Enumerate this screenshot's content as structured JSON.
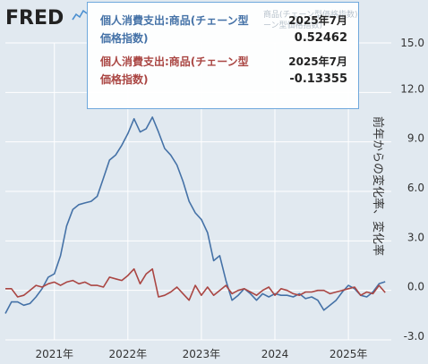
{
  "logo": {
    "text": "FRED"
  },
  "tooltip": {
    "series": [
      {
        "name": "個人消費支出:商品(チェーン型価格指数)",
        "date": "2025年7月",
        "value": "0.52462",
        "color": "#4572a7"
      },
      {
        "name": "個人消費支出:商品(チェーン型価格指数)",
        "date": "2025年7月",
        "value": "-0.13355",
        "color": "#aa4643"
      }
    ],
    "ghost": [
      "商品(チェーン型価格指数)",
      "ーン型価格指数)"
    ]
  },
  "chart_data": {
    "type": "line",
    "ylabel": "前年からの変化率、変化率",
    "ylim": [
      -3.0,
      15.0
    ],
    "yticks": [
      "15.0",
      "12.0",
      "9.0",
      "6.0",
      "3.0",
      "0.0",
      "-3.0"
    ],
    "xlim": [
      "2020-05",
      "2025-08"
    ],
    "xticks": [
      {
        "label": "2021年",
        "date": "2021-01"
      },
      {
        "label": "2022年",
        "date": "2022-01"
      },
      {
        "label": "2023年",
        "date": "2023-01"
      },
      {
        "label": "2024",
        "date": "2024-01"
      },
      {
        "label": "2025年",
        "date": "2025-01"
      }
    ],
    "grid": true,
    "series": [
      {
        "name": "個人消費支出:商品(チェーン型価格指数)",
        "color": "#4572a7",
        "points": [
          [
            "2020-05",
            -1.4
          ],
          [
            "2020-06",
            -0.7
          ],
          [
            "2020-07",
            -0.7
          ],
          [
            "2020-08",
            -0.9
          ],
          [
            "2020-09",
            -0.8
          ],
          [
            "2020-10",
            -0.4
          ],
          [
            "2020-11",
            0.1
          ],
          [
            "2020-12",
            0.8
          ],
          [
            "2021-01",
            1.0
          ],
          [
            "2021-02",
            2.1
          ],
          [
            "2021-03",
            3.9
          ],
          [
            "2021-04",
            4.9
          ],
          [
            "2021-05",
            5.2
          ],
          [
            "2021-06",
            5.3
          ],
          [
            "2021-07",
            5.4
          ],
          [
            "2021-08",
            5.7
          ],
          [
            "2021-09",
            6.8
          ],
          [
            "2021-10",
            7.9
          ],
          [
            "2021-11",
            8.2
          ],
          [
            "2021-12",
            8.8
          ],
          [
            "2022-01",
            9.5
          ],
          [
            "2022-02",
            10.4
          ],
          [
            "2022-03",
            9.6
          ],
          [
            "2022-04",
            9.8
          ],
          [
            "2022-05",
            10.5
          ],
          [
            "2022-06",
            9.6
          ],
          [
            "2022-07",
            8.6
          ],
          [
            "2022-08",
            8.2
          ],
          [
            "2022-09",
            7.6
          ],
          [
            "2022-10",
            6.6
          ],
          [
            "2022-11",
            5.4
          ],
          [
            "2022-12",
            4.7
          ],
          [
            "2023-01",
            4.3
          ],
          [
            "2023-02",
            3.5
          ],
          [
            "2023-03",
            1.8
          ],
          [
            "2023-04",
            2.1
          ],
          [
            "2023-05",
            0.6
          ],
          [
            "2023-06",
            -0.6
          ],
          [
            "2023-07",
            -0.3
          ],
          [
            "2023-08",
            0.1
          ],
          [
            "2023-09",
            -0.2
          ],
          [
            "2023-10",
            -0.6
          ],
          [
            "2023-11",
            -0.2
          ],
          [
            "2023-12",
            -0.4
          ],
          [
            "2024-01",
            -0.2
          ],
          [
            "2024-02",
            -0.3
          ],
          [
            "2024-03",
            -0.3
          ],
          [
            "2024-04",
            -0.4
          ],
          [
            "2024-05",
            -0.2
          ],
          [
            "2024-06",
            -0.5
          ],
          [
            "2024-07",
            -0.4
          ],
          [
            "2024-08",
            -0.6
          ],
          [
            "2024-09",
            -1.2
          ],
          [
            "2024-10",
            -0.9
          ],
          [
            "2024-11",
            -0.6
          ],
          [
            "2024-12",
            -0.1
          ],
          [
            "2025-01",
            0.3
          ],
          [
            "2025-02",
            0.1
          ],
          [
            "2025-03",
            -0.3
          ],
          [
            "2025-04",
            -0.4
          ],
          [
            "2025-05",
            -0.1
          ],
          [
            "2025-06",
            0.4
          ],
          [
            "2025-07",
            0.52462
          ]
        ]
      },
      {
        "name": "個人消費支出:商品(チェーン型価格指数)",
        "color": "#aa4643",
        "points": [
          [
            "2020-05",
            0.1
          ],
          [
            "2020-06",
            0.1
          ],
          [
            "2020-07",
            -0.4
          ],
          [
            "2020-08",
            -0.3
          ],
          [
            "2020-09",
            0.0
          ],
          [
            "2020-10",
            0.3
          ],
          [
            "2020-11",
            0.2
          ],
          [
            "2020-12",
            0.4
          ],
          [
            "2021-01",
            0.5
          ],
          [
            "2021-02",
            0.3
          ],
          [
            "2021-03",
            0.5
          ],
          [
            "2021-04",
            0.6
          ],
          [
            "2021-05",
            0.4
          ],
          [
            "2021-06",
            0.5
          ],
          [
            "2021-07",
            0.3
          ],
          [
            "2021-08",
            0.3
          ],
          [
            "2021-09",
            0.2
          ],
          [
            "2021-10",
            0.8
          ],
          [
            "2021-11",
            0.7
          ],
          [
            "2021-12",
            0.6
          ],
          [
            "2022-01",
            0.9
          ],
          [
            "2022-02",
            1.3
          ],
          [
            "2022-03",
            0.4
          ],
          [
            "2022-04",
            1.0
          ],
          [
            "2022-05",
            1.3
          ],
          [
            "2022-06",
            -0.4
          ],
          [
            "2022-07",
            -0.3
          ],
          [
            "2022-08",
            -0.1
          ],
          [
            "2022-09",
            0.2
          ],
          [
            "2022-10",
            -0.2
          ],
          [
            "2022-11",
            -0.6
          ],
          [
            "2022-12",
            0.3
          ],
          [
            "2023-01",
            -0.3
          ],
          [
            "2023-02",
            0.2
          ],
          [
            "2023-03",
            -0.3
          ],
          [
            "2023-04",
            0.0
          ],
          [
            "2023-05",
            0.3
          ],
          [
            "2023-06",
            -0.2
          ],
          [
            "2023-07",
            0.0
          ],
          [
            "2023-08",
            0.1
          ],
          [
            "2023-09",
            -0.1
          ],
          [
            "2023-10",
            -0.3
          ],
          [
            "2023-11",
            0.0
          ],
          [
            "2023-12",
            0.2
          ],
          [
            "2024-01",
            -0.3
          ],
          [
            "2024-02",
            0.1
          ],
          [
            "2024-03",
            0.0
          ],
          [
            "2024-04",
            -0.2
          ],
          [
            "2024-05",
            -0.3
          ],
          [
            "2024-06",
            -0.1
          ],
          [
            "2024-07",
            -0.1
          ],
          [
            "2024-08",
            0.0
          ],
          [
            "2024-09",
            0.0
          ],
          [
            "2024-10",
            -0.2
          ],
          [
            "2024-11",
            -0.1
          ],
          [
            "2024-12",
            0.0
          ],
          [
            "2025-01",
            0.1
          ],
          [
            "2025-02",
            0.2
          ],
          [
            "2025-03",
            -0.3
          ],
          [
            "2025-04",
            -0.1
          ],
          [
            "2025-05",
            -0.2
          ],
          [
            "2025-06",
            0.3
          ],
          [
            "2025-07",
            -0.13355
          ]
        ]
      }
    ]
  }
}
